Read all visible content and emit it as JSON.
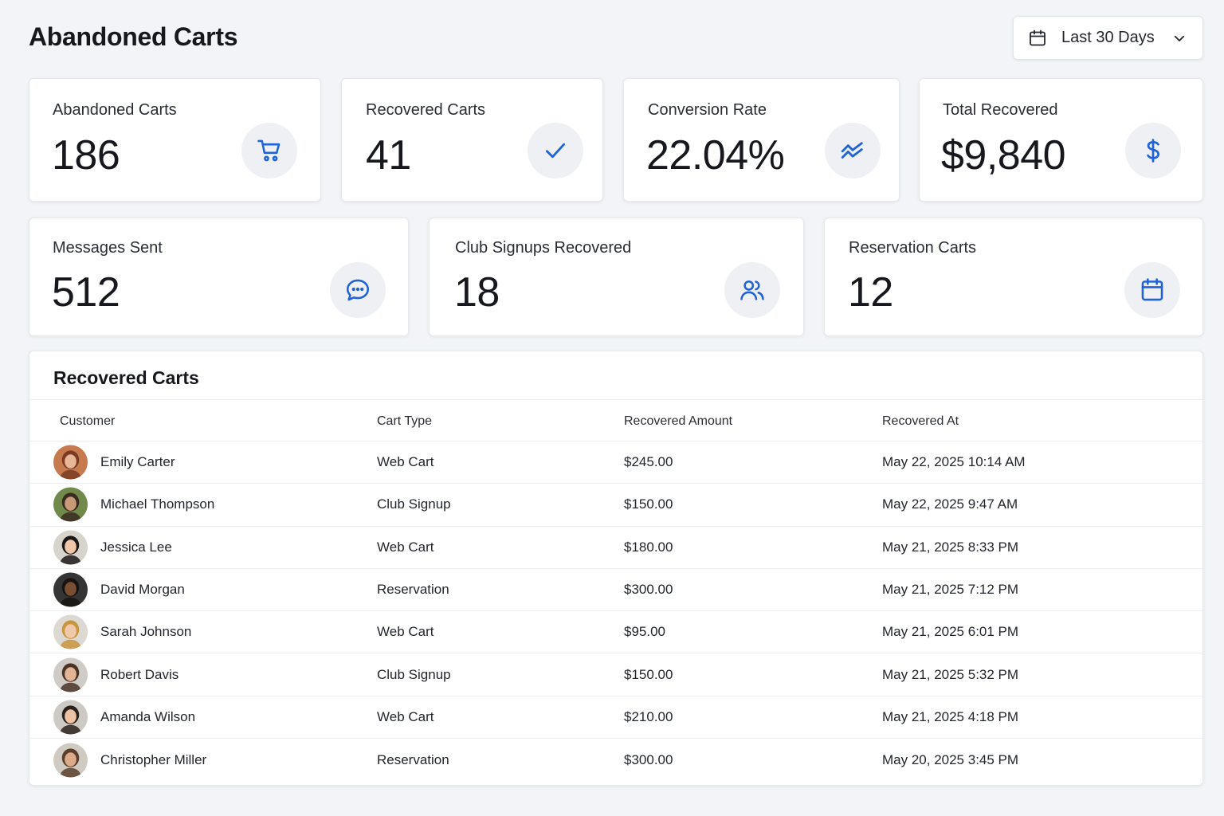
{
  "header": {
    "title": "Abandoned Carts",
    "date_filter": "Last 30 Days"
  },
  "colors": {
    "accent": "#1f63d6",
    "icon_bg": "#eef0f4",
    "page_bg": "#f3f4f7"
  },
  "stats": [
    {
      "label": "Abandoned Carts",
      "value": "186",
      "icon": "cart-icon"
    },
    {
      "label": "Recovered Carts",
      "value": "41",
      "icon": "check-icon"
    },
    {
      "label": "Conversion Rate",
      "value": "22.04%",
      "icon": "trend-icon"
    },
    {
      "label": "Total Recovered",
      "value": "$9,840",
      "icon": "dollar-icon"
    },
    {
      "label": "Messages Sent",
      "value": "512",
      "icon": "chat-icon"
    },
    {
      "label": "Club Signups Recovered",
      "value": "18",
      "icon": "users-icon"
    },
    {
      "label": "Reservation Carts",
      "value": "12",
      "icon": "calendar-icon"
    }
  ],
  "table": {
    "title": "Recovered Carts",
    "columns": [
      "Customer",
      "Cart Type",
      "Recovered Amount",
      "Recovered At"
    ],
    "rows": [
      {
        "customer": "Emily Carter",
        "type": "Web Cart",
        "amount": "$245.00",
        "at": "May 22, 2025 10:14 AM"
      },
      {
        "customer": "Michael Thompson",
        "type": "Club Signup",
        "amount": "$150.00",
        "at": "May 22, 2025 9:47 AM"
      },
      {
        "customer": "Jessica Lee",
        "type": "Web Cart",
        "amount": "$180.00",
        "at": "May 21, 2025 8:33 PM"
      },
      {
        "customer": "David Morgan",
        "type": "Reservation",
        "amount": "$300.00",
        "at": "May 21, 2025 7:12 PM"
      },
      {
        "customer": "Sarah Johnson",
        "type": "Web Cart",
        "amount": "$95.00",
        "at": "May 21, 2025 6:01 PM"
      },
      {
        "customer": "Robert Davis",
        "type": "Club Signup",
        "amount": "$150.00",
        "at": "May 21, 2025 5:32 PM"
      },
      {
        "customer": "Amanda Wilson",
        "type": "Web Cart",
        "amount": "$210.00",
        "at": "May 21, 2025 4:18 PM"
      },
      {
        "customer": "Christopher Miller",
        "type": "Reservation",
        "amount": "$300.00",
        "at": "May 20, 2025 3:45 PM"
      }
    ]
  }
}
